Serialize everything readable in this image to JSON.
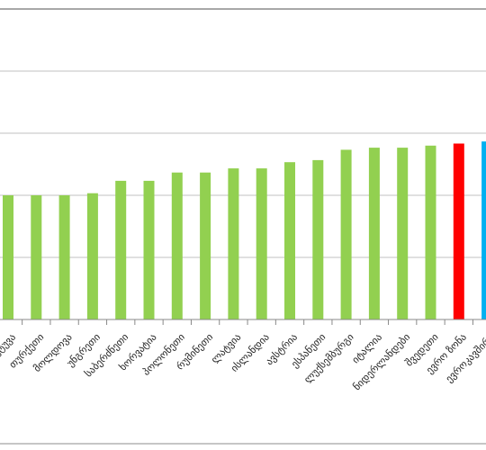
{
  "chart_data": {
    "type": "bar",
    "title": "",
    "xlabel": "",
    "ylabel": "",
    "ylim": [
      0,
      7.5
    ],
    "grid": true,
    "legend": "none",
    "categories": [
      "ლიეტუვა",
      "თურქეთი",
      "მოლდოვა",
      "უნგრეთი",
      "საბერძნეთი",
      "ხორვატია",
      "პოლონეთი",
      "რუმინეთი",
      "ლატვია",
      "ისლანდია",
      "ავსტრია",
      "ესპანეთი",
      "ლუქსემბურგი",
      "იტალია",
      "ნიდერლანდები",
      "შვედეთი",
      "ევრო ზონა",
      "ევროკავშირი"
    ],
    "values": [
      3.0,
      3.0,
      3.0,
      3.05,
      3.35,
      3.35,
      3.55,
      3.55,
      3.65,
      3.65,
      3.8,
      3.85,
      4.1,
      4.15,
      4.15,
      4.2,
      4.25,
      4.3
    ],
    "colors": {
      "default": "#92d050",
      "highlight_red": "#ff0000",
      "highlight_blue": "#00b0f0",
      "gridline": "#c0c0c0",
      "axis": "#888888"
    },
    "highlight": {
      "ევრო ზონა": "highlight_red",
      "ევროკავშირი": "highlight_blue"
    }
  }
}
